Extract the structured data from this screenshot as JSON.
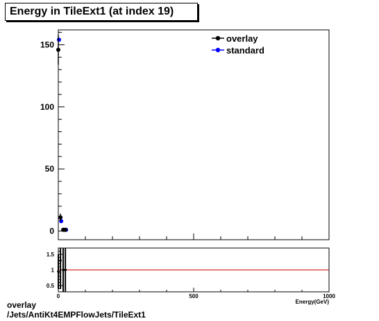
{
  "title": "Energy in TileExt1 (at index 19)",
  "footer": {
    "line1": "overlay",
    "line2": "/Jets/AntiKt4EMPFlowJets/TileExt1"
  },
  "colors": {
    "overlay": "#000000",
    "standard": "#0000ff",
    "ratio_line": "#cc0000"
  },
  "chart_data": [
    {
      "type": "scatter",
      "title": "Energy in TileExt1 (at index 19)",
      "xlabel": "Energy(GeV)",
      "ylabel": "",
      "xlim": [
        0,
        1000
      ],
      "ylim": [
        -7,
        162
      ],
      "x_ticks": [
        0,
        500,
        1000
      ],
      "y_ticks": [
        0,
        50,
        100,
        150
      ],
      "grid": false,
      "legend_position": "top-right",
      "series": [
        {
          "name": "overlay",
          "color": "#000000",
          "points": [
            {
              "x": 0,
              "y": 146,
              "yerr": 12
            },
            {
              "x": 8,
              "y": 11,
              "yerr": 3
            },
            {
              "x": 18,
              "y": 1,
              "yerr": 1
            },
            {
              "x": 26,
              "y": 1,
              "yerr": 1
            }
          ]
        },
        {
          "name": "standard",
          "color": "#0000ff",
          "points": [
            {
              "x": 0,
              "y": 154
            },
            {
              "x": 8,
              "y": 8
            },
            {
              "x": 18,
              "y": 1
            },
            {
              "x": 26,
              "y": 1
            }
          ]
        }
      ]
    },
    {
      "type": "scatter",
      "title": "",
      "xlabel": "",
      "ylabel": "",
      "xlim": [
        0,
        1000
      ],
      "ylim": [
        0.3,
        1.7
      ],
      "x_ticks": [
        0,
        500,
        1000
      ],
      "y_ticks": [
        0.5,
        1,
        1.5
      ],
      "reference_line": 1,
      "series": [
        {
          "name": "",
          "color": "#000000",
          "points": [
            {
              "x": 0,
              "y": 0.95,
              "yerr": 0.55
            },
            {
              "x": 8,
              "y": 1.3,
              "yerr": 0.9
            },
            {
              "x": 18,
              "y": 1.0,
              "yerr": 1.0
            },
            {
              "x": 26,
              "y": 1.0,
              "yerr": 1.0
            }
          ]
        }
      ]
    }
  ]
}
